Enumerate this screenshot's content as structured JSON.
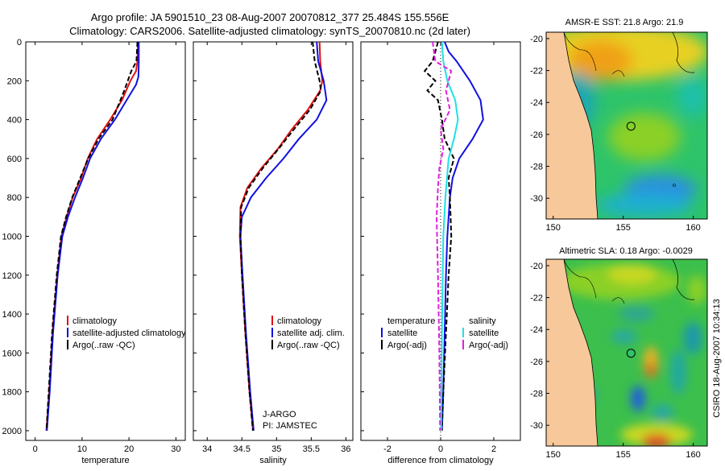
{
  "header": {
    "line1": "Argo profile: JA 5901510_23 08-Aug-2007 20070812_377 25.484S 155.556E",
    "line2": "Climatology: CARS2006. Satellite-adjusted climatology: synTS_20070810.nc (2d later)"
  },
  "credit": "CSIRO 18-Aug-2007 10:34:13",
  "agency": {
    "line1": "J-ARGO",
    "line2": "PI: JAMSTEC"
  },
  "colors": {
    "climatology": "#e01010",
    "satellite": "#1010e0",
    "argo": "#000000",
    "sal_satellite": "#20e0e8",
    "sal_argo": "#e020e0",
    "land": "#f7c89a"
  },
  "chart_data": [
    {
      "type": "line",
      "xlabel": "temperature",
      "ylabel": "",
      "xlim": [
        -2,
        32
      ],
      "ylim": [
        2050,
        0
      ],
      "xticks": [
        "0",
        "10",
        "20",
        "30"
      ],
      "yticks": [
        "0",
        "200",
        "400",
        "600",
        "800",
        "1000",
        "1200",
        "1400",
        "1600",
        "1800",
        "2000"
      ],
      "legend": [
        "climatology",
        "satellite-adjusted climatology",
        "Argo(..raw -QC)"
      ],
      "legend_position": "lower-middle",
      "series": [
        {
          "name": "climatology",
          "color": "#e01010",
          "dash": false,
          "x": [
            21.9,
            21.8,
            21.5,
            20.3,
            18.5,
            16.0,
            13.2,
            11.2,
            9.8,
            8.0,
            6.7,
            5.6,
            4.7,
            3.7,
            3.0,
            2.4
          ],
          "y": [
            0,
            100,
            150,
            200,
            300,
            400,
            500,
            600,
            700,
            800,
            900,
            1000,
            1200,
            1500,
            1800,
            2000
          ]
        },
        {
          "name": "satellite-adjusted climatology",
          "color": "#1010e0",
          "dash": false,
          "x": [
            22.1,
            22.1,
            22.0,
            21.5,
            19.5,
            17.0,
            14.0,
            11.7,
            10.2,
            8.5,
            7.0,
            5.8,
            4.8,
            3.8,
            3.1,
            2.5
          ],
          "y": [
            0,
            100,
            180,
            220,
            300,
            400,
            500,
            600,
            700,
            800,
            900,
            1000,
            1200,
            1500,
            1800,
            2000
          ]
        },
        {
          "name": "Argo(..raw -QC)",
          "color": "#000000",
          "dash": true,
          "x": [
            21.8,
            21.6,
            20.5,
            19.0,
            16.5,
            13.5,
            11.3,
            9.6,
            7.9,
            6.6,
            5.5,
            4.6,
            3.6,
            2.9,
            2.4
          ],
          "y": [
            0,
            100,
            150,
            250,
            400,
            500,
            600,
            700,
            800,
            900,
            1000,
            1200,
            1500,
            1800,
            2000
          ]
        }
      ]
    },
    {
      "type": "line",
      "xlabel": "salinity",
      "ylabel": "",
      "xlim": [
        33.8,
        36.1
      ],
      "ylim": [
        2050,
        0
      ],
      "xticks": [
        "34",
        "34.5",
        "35",
        "35.5",
        "36"
      ],
      "legend": [
        "climatology",
        "satellite adj. clim.",
        "Argo(..raw -QC)"
      ],
      "legend_position": "lower-right",
      "series": [
        {
          "name": "climatology",
          "color": "#e01010",
          "dash": false,
          "x": [
            35.62,
            35.63,
            35.66,
            35.63,
            35.45,
            35.22,
            35.02,
            34.78,
            34.58,
            34.48,
            34.47,
            34.5,
            34.55,
            34.61,
            34.66
          ],
          "y": [
            0,
            100,
            200,
            250,
            350,
            450,
            550,
            650,
            750,
            850,
            1000,
            1200,
            1500,
            1800,
            2000
          ]
        },
        {
          "name": "satellite adj. clim.",
          "color": "#1010e0",
          "dash": false,
          "x": [
            35.58,
            35.6,
            35.68,
            35.72,
            35.58,
            35.32,
            35.1,
            34.85,
            34.63,
            34.5,
            34.48,
            34.51,
            34.56,
            34.62,
            34.67
          ],
          "y": [
            0,
            100,
            200,
            300,
            400,
            500,
            600,
            700,
            800,
            900,
            1000,
            1200,
            1500,
            1800,
            2000
          ]
        },
        {
          "name": "Argo(..raw -QC)",
          "color": "#000000",
          "dash": true,
          "x": [
            35.52,
            35.55,
            35.62,
            35.64,
            35.48,
            35.25,
            35.03,
            34.8,
            34.6,
            34.49,
            34.48,
            34.5,
            34.55,
            34.61,
            34.66
          ],
          "y": [
            0,
            100,
            200,
            250,
            350,
            450,
            550,
            650,
            750,
            850,
            1000,
            1200,
            1500,
            1800,
            2000
          ]
        }
      ]
    },
    {
      "type": "line",
      "xlabel": "difference from climatology",
      "ylabel": "",
      "xlim": [
        -3,
        3
      ],
      "ylim": [
        2050,
        0
      ],
      "xticks": [
        "-2",
        "0",
        "2"
      ],
      "legend_headings": [
        "temperature",
        "salinity"
      ],
      "legend": [
        "satellite",
        "Argo(-adj)",
        "satellite",
        "Argo(-adj)"
      ],
      "legend_position": "lower-middle",
      "series": [
        {
          "name": "temperature satellite",
          "color": "#1010e0",
          "dash": false,
          "x": [
            0.15,
            0.3,
            0.6,
            1.1,
            1.5,
            1.6,
            1.2,
            0.7,
            0.45,
            0.35,
            0.3,
            0.25,
            0.2,
            0.15,
            0.1,
            0.05
          ],
          "y": [
            0,
            50,
            100,
            200,
            300,
            400,
            500,
            600,
            700,
            800,
            900,
            1000,
            1200,
            1500,
            1800,
            2000
          ]
        },
        {
          "name": "temperature Argo(-adj)",
          "color": "#000000",
          "dash": true,
          "x": [
            -0.1,
            -0.3,
            -0.6,
            -0.2,
            -0.5,
            -0.1,
            0.05,
            0.15,
            0.5,
            0.3,
            0.35,
            0.4,
            0.3,
            0.2,
            0.1,
            0.05
          ],
          "y": [
            0,
            100,
            150,
            200,
            250,
            300,
            400,
            500,
            600,
            700,
            800,
            1000,
            1200,
            1500,
            1800,
            2000
          ]
        },
        {
          "name": "salinity satellite",
          "color": "#20e0e8",
          "dash": false,
          "x": [
            0.05,
            0.1,
            0.25,
            0.55,
            0.65,
            0.5,
            0.3,
            0.18,
            0.1,
            0.05,
            0.02
          ],
          "y": [
            0,
            100,
            200,
            300,
            400,
            500,
            600,
            800,
            1000,
            1500,
            2000
          ]
        },
        {
          "name": "salinity Argo(-adj)",
          "color": "#e020e0",
          "dash": true,
          "x": [
            -0.3,
            -0.2,
            0.4,
            0.2,
            0.35,
            0.0,
            0.1,
            -0.05,
            -0.1,
            -0.15,
            -0.1,
            -0.05,
            -0.02
          ],
          "y": [
            0,
            100,
            150,
            250,
            350,
            450,
            550,
            650,
            750,
            900,
            1200,
            1600,
            2000
          ]
        }
      ]
    },
    {
      "type": "heatmap",
      "title": "AMSR-E SST: 21.8 Argo: 21.9",
      "xlim": [
        149.5,
        161
      ],
      "ylim": [
        -31.3,
        -19.6
      ],
      "xticks": [
        "150",
        "155",
        "160"
      ],
      "yticks": [
        "-20",
        "-22",
        "-24",
        "-26",
        "-28",
        "-30"
      ],
      "float_position": {
        "lon": 155.556,
        "lat": -25.484
      }
    },
    {
      "type": "heatmap",
      "title": "Altimetric SLA: 0.18 Argo: -0.0029",
      "xlim": [
        149.5,
        161
      ],
      "ylim": [
        -31.3,
        -19.6
      ],
      "xticks": [
        "150",
        "155",
        "160"
      ],
      "yticks": [
        "-20",
        "-22",
        "-24",
        "-26",
        "-28",
        "-30"
      ],
      "float_position": {
        "lon": 155.556,
        "lat": -25.484
      }
    }
  ]
}
